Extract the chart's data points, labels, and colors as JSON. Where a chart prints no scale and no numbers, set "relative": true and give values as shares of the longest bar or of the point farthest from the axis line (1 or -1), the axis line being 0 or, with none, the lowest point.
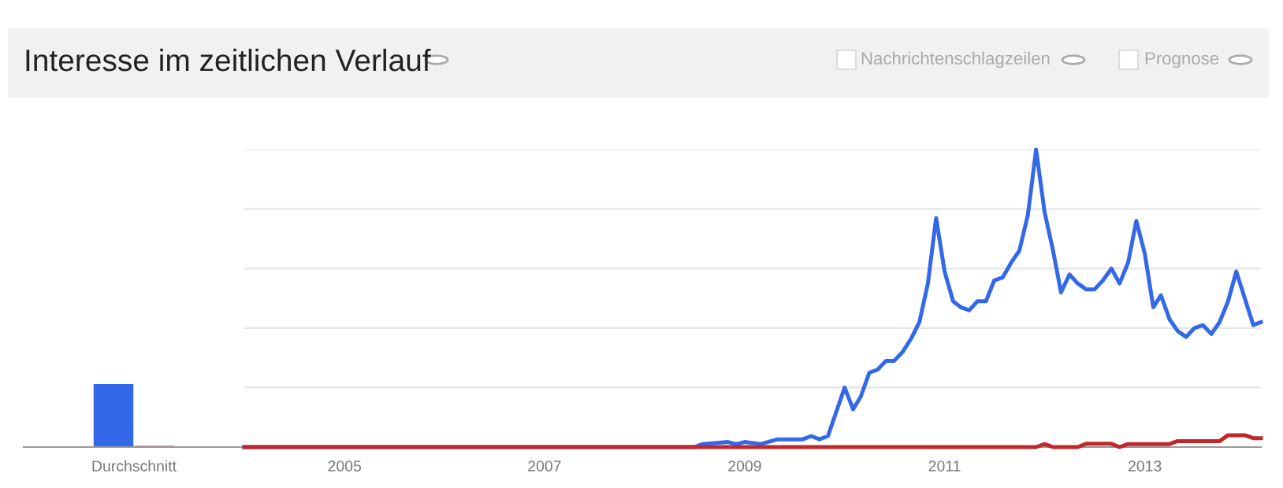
{
  "chart_data": [
    {
      "type": "bar",
      "title": "Interesse im zeitlichen Verlauf",
      "categories": [
        "Durchschnitt"
      ],
      "relative": true,
      "legend": false,
      "grid": false,
      "series": [
        {
          "color": "#3369e8",
          "values": [
            1
          ]
        },
        {
          "color": "#c0282b",
          "values": [
            0.02
          ]
        }
      ]
    },
    {
      "type": "line",
      "relative": true,
      "legend": false,
      "grid": "y",
      "annotations": [
        "Nachrichtenschlagzeilen",
        "Prognose"
      ],
      "xlim": [
        "2004-01",
        "2014-03"
      ],
      "xticks": [
        {
          "value": "2005-01",
          "label": "2005"
        },
        {
          "value": "2007-01",
          "label": "2007"
        },
        {
          "value": "2009-01",
          "label": "2009"
        },
        {
          "value": "2011-01",
          "label": "2011"
        },
        {
          "value": "2013-01",
          "label": "2013"
        }
      ],
      "series": [
        {
          "color": "#3369e8",
          "x": [
            "2004-01",
            "2008-07",
            "2008-08",
            "2008-11",
            "2008-12",
            "2009-01",
            "2009-03",
            "2009-05",
            "2009-08",
            "2009-09",
            "2009-10",
            "2009-11",
            "2010-01",
            "2010-02",
            "2010-03",
            "2010-04",
            "2010-05",
            "2010-06",
            "2010-07",
            "2010-08",
            "2010-09",
            "2010-10",
            "2010-11",
            "2010-12",
            "2011-01",
            "2011-02",
            "2011-03",
            "2011-04",
            "2011-05",
            "2011-06",
            "2011-07",
            "2011-08",
            "2011-09",
            "2011-10",
            "2011-11",
            "2011-12",
            "2012-01",
            "2012-02",
            "2012-03",
            "2012-04",
            "2012-05",
            "2012-06",
            "2012-07",
            "2012-08",
            "2012-09",
            "2012-10",
            "2012-11",
            "2012-12",
            "2013-01",
            "2013-02",
            "2013-03",
            "2013-04",
            "2013-05",
            "2013-06",
            "2013-07",
            "2013-08",
            "2013-09",
            "2013-10",
            "2013-11",
            "2013-12",
            "2014-01",
            "2014-02",
            "2014-03"
          ],
          "values": [
            0,
            0,
            0.01,
            0.017,
            0.01,
            0.017,
            0.01,
            0.026,
            0.026,
            0.037,
            0.026,
            0.037,
            0.2,
            0.127,
            0.17,
            0.25,
            0.26,
            0.29,
            0.29,
            0.32,
            0.365,
            0.42,
            0.55,
            0.77,
            0.59,
            0.49,
            0.47,
            0.46,
            0.49,
            0.49,
            0.56,
            0.57,
            0.62,
            0.66,
            0.78,
            1.0,
            0.79,
            0.66,
            0.52,
            0.58,
            0.55,
            0.53,
            0.53,
            0.56,
            0.6,
            0.55,
            0.62,
            0.76,
            0.65,
            0.47,
            0.51,
            0.43,
            0.39,
            0.37,
            0.4,
            0.41,
            0.38,
            0.42,
            0.49,
            0.59,
            0.5,
            0.41,
            0.42
          ]
        },
        {
          "color": "#c0282b",
          "x": [
            "2004-01",
            "2011-12",
            "2012-01",
            "2012-02",
            "2012-05",
            "2012-06",
            "2012-09",
            "2012-10",
            "2012-11",
            "2013-04",
            "2013-05",
            "2013-10",
            "2013-11",
            "2014-01",
            "2014-02",
            "2014-03"
          ],
          "values": [
            0,
            0,
            0.01,
            0,
            0,
            0.011,
            0.011,
            0,
            0.01,
            0.01,
            0.02,
            0.02,
            0.04,
            0.04,
            0.03,
            0.03
          ]
        }
      ]
    }
  ]
}
